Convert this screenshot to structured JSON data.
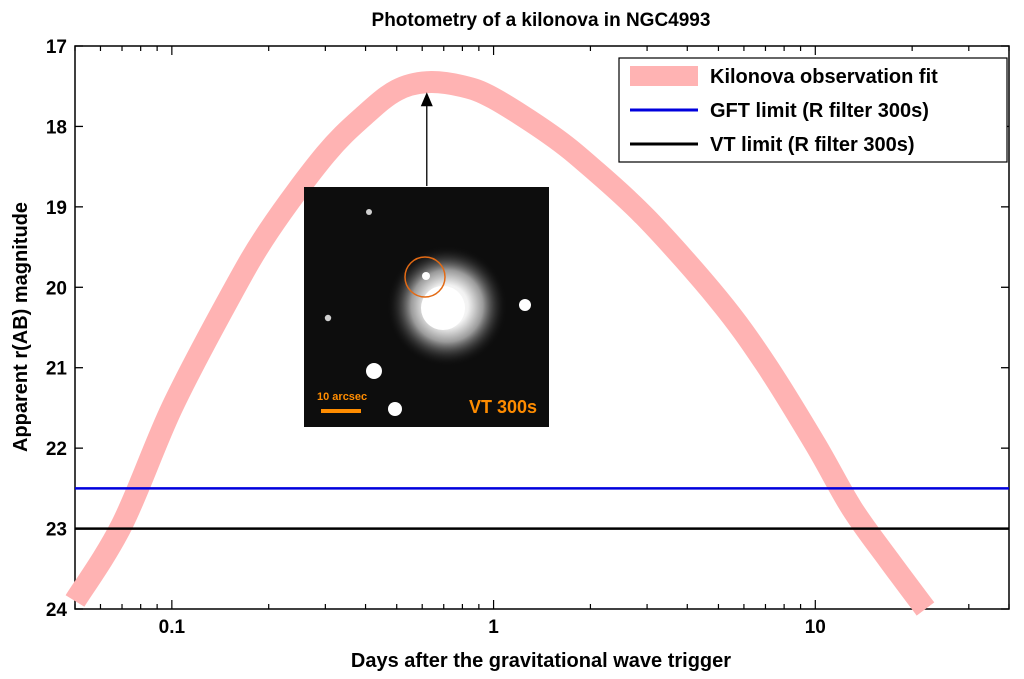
{
  "chart_data": {
    "type": "line",
    "title": "Photometry of a kilonova in NGC4993",
    "xlabel": "Days after the gravitational wave trigger",
    "ylabel": "Apparent r(AB) magnitude",
    "xscale": "log",
    "xlim": [
      0.05,
      40
    ],
    "ylim": [
      24,
      17
    ],
    "y_inverted": true,
    "xticks": [
      0.1,
      1,
      10
    ],
    "xtick_labels": [
      "0.1",
      "1",
      "10"
    ],
    "yticks": [
      17,
      18,
      19,
      20,
      21,
      22,
      23,
      24
    ],
    "ytick_labels": [
      "17",
      "18",
      "19",
      "20",
      "21",
      "22",
      "23",
      "24"
    ],
    "grid": false,
    "legend_position": "top-right",
    "series": [
      {
        "name": "Kilonova observation fit",
        "color": "#ffb3b3",
        "x": [
          0.05,
          0.07,
          0.1,
          0.15,
          0.2,
          0.3,
          0.4,
          0.5,
          0.62,
          0.8,
          1,
          1.5,
          2,
          3,
          5,
          7,
          10,
          13,
          17,
          22
        ],
        "y": [
          23.9,
          22.95,
          21.5,
          20.15,
          19.3,
          18.35,
          17.85,
          17.55,
          17.45,
          17.5,
          17.65,
          18.1,
          18.5,
          19.15,
          20.15,
          20.95,
          21.95,
          22.75,
          23.4,
          24.0
        ]
      },
      {
        "name": "GFT limit (R filter 300s)",
        "color": "#0000dd",
        "x": [
          0.05,
          40
        ],
        "y": [
          22.5,
          22.5
        ]
      },
      {
        "name": "VT limit (R filter 300s)",
        "color": "#000000",
        "x": [
          0.05,
          40
        ],
        "y": [
          23.0,
          23.0
        ]
      }
    ],
    "annotations": [
      {
        "type": "arrow",
        "from_x": 0.62,
        "from_y": 19.0,
        "to_x": 0.62,
        "to_y": 17.5
      }
    ],
    "inset": {
      "scale_label": "10 arcsec",
      "label": "VT 300s",
      "label_color": "#ff8c00"
    }
  }
}
